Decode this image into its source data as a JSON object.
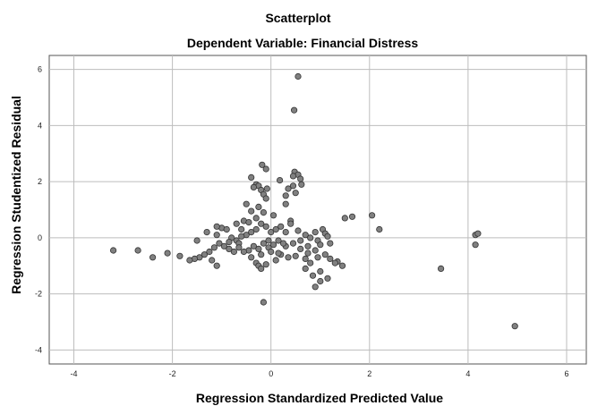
{
  "chart_data": {
    "type": "scatter",
    "title": "Scatterplot",
    "subtitle": "Dependent Variable: Financial Distress",
    "xlabel": "Regression Standardized Predicted Value",
    "ylabel": "Regression Studentized Residual",
    "xlim": [
      -4.5,
      6.4
    ],
    "ylim": [
      -4.5,
      6.5
    ],
    "x_ticks": [
      -4,
      -2,
      0,
      2,
      4,
      6
    ],
    "y_ticks": [
      -4,
      -2,
      0,
      2,
      4,
      6
    ],
    "grid": true,
    "marker_color": "#808080",
    "marker_edge_color": "#333333",
    "points": [
      [
        0.55,
        5.75
      ],
      [
        0.47,
        4.55
      ],
      [
        -0.18,
        2.6
      ],
      [
        -0.1,
        2.45
      ],
      [
        0.48,
        2.35
      ],
      [
        0.55,
        2.25
      ],
      [
        0.6,
        2.1
      ],
      [
        0.45,
        2.2
      ],
      [
        -0.4,
        2.15
      ],
      [
        0.18,
        2.05
      ],
      [
        0.62,
        1.9
      ],
      [
        -0.3,
        1.9
      ],
      [
        -0.25,
        1.85
      ],
      [
        -0.35,
        1.8
      ],
      [
        -0.08,
        1.75
      ],
      [
        -0.2,
        1.7
      ],
      [
        0.35,
        1.75
      ],
      [
        0.45,
        1.85
      ],
      [
        -0.15,
        1.55
      ],
      [
        0.3,
        1.5
      ],
      [
        0.5,
        1.6
      ],
      [
        -0.1,
        1.4
      ],
      [
        -0.5,
        1.2
      ],
      [
        -0.25,
        1.1
      ],
      [
        0.3,
        1.2
      ],
      [
        -0.4,
        0.95
      ],
      [
        -0.15,
        0.9
      ],
      [
        0.05,
        0.8
      ],
      [
        0.4,
        0.6
      ],
      [
        -0.3,
        0.7
      ],
      [
        -0.55,
        0.6
      ],
      [
        -0.7,
        0.5
      ],
      [
        -0.6,
        0.3
      ],
      [
        -0.45,
        0.55
      ],
      [
        -1.0,
        0.35
      ],
      [
        -1.1,
        0.4
      ],
      [
        -0.9,
        0.3
      ],
      [
        -1.3,
        0.2
      ],
      [
        -1.1,
        0.1
      ],
      [
        -0.8,
        0.0
      ],
      [
        -0.7,
        -0.1
      ],
      [
        -0.65,
        -0.2
      ],
      [
        -0.5,
        0.1
      ],
      [
        -0.4,
        0.2
      ],
      [
        -0.3,
        0.3
      ],
      [
        -0.2,
        0.5
      ],
      [
        -0.1,
        0.4
      ],
      [
        0.0,
        0.2
      ],
      [
        0.1,
        0.3
      ],
      [
        0.2,
        0.4
      ],
      [
        0.3,
        0.2
      ],
      [
        0.4,
        0.5
      ],
      [
        0.55,
        0.25
      ],
      [
        0.7,
        0.1
      ],
      [
        0.8,
        0.0
      ],
      [
        0.9,
        0.2
      ],
      [
        1.05,
        0.3
      ],
      [
        1.1,
        0.15
      ],
      [
        1.15,
        0.05
      ],
      [
        0.95,
        -0.1
      ],
      [
        0.75,
        -0.3
      ],
      [
        0.6,
        -0.4
      ],
      [
        0.45,
        -0.2
      ],
      [
        0.3,
        -0.3
      ],
      [
        0.15,
        -0.1
      ],
      [
        0.05,
        -0.25
      ],
      [
        -0.05,
        -0.35
      ],
      [
        -0.15,
        -0.2
      ],
      [
        -0.25,
        -0.4
      ],
      [
        -0.35,
        -0.3
      ],
      [
        -0.45,
        -0.45
      ],
      [
        -0.55,
        -0.5
      ],
      [
        -0.65,
        -0.35
      ],
      [
        -0.75,
        -0.5
      ],
      [
        -0.85,
        -0.4
      ],
      [
        -0.95,
        -0.3
      ],
      [
        -1.05,
        -0.2
      ],
      [
        -1.15,
        -0.35
      ],
      [
        -1.25,
        -0.5
      ],
      [
        -1.35,
        -0.6
      ],
      [
        -1.45,
        -0.7
      ],
      [
        -1.55,
        -0.75
      ],
      [
        -1.65,
        -0.8
      ],
      [
        -1.1,
        -1.0
      ],
      [
        -1.2,
        -0.8
      ],
      [
        -0.3,
        -0.9
      ],
      [
        -0.25,
        -1.0
      ],
      [
        -0.2,
        -1.1
      ],
      [
        -0.1,
        -0.95
      ],
      [
        0.1,
        -0.8
      ],
      [
        0.2,
        -0.6
      ],
      [
        0.35,
        -0.7
      ],
      [
        0.5,
        -0.65
      ],
      [
        0.7,
        -0.75
      ],
      [
        0.8,
        -0.9
      ],
      [
        0.95,
        -0.7
      ],
      [
        1.1,
        -0.6
      ],
      [
        1.2,
        -0.75
      ],
      [
        0.85,
        -1.35
      ],
      [
        1.0,
        -1.55
      ],
      [
        0.9,
        -1.75
      ],
      [
        1.15,
        -1.45
      ],
      [
        1.0,
        -1.2
      ],
      [
        0.7,
        -1.1
      ],
      [
        1.35,
        -0.85
      ],
      [
        1.45,
        -1.0
      ],
      [
        1.3,
        -0.9
      ],
      [
        0.9,
        -0.45
      ],
      [
        0.75,
        -0.55
      ],
      [
        1.0,
        -0.25
      ],
      [
        1.2,
        -0.2
      ],
      [
        0.6,
        -0.1
      ],
      [
        0.25,
        -0.2
      ],
      [
        -0.05,
        -0.1
      ],
      [
        -0.6,
        0.05
      ],
      [
        -0.85,
        -0.15
      ],
      [
        -0.2,
        -0.6
      ],
      [
        -0.4,
        -0.7
      ],
      [
        0.0,
        -0.5
      ],
      [
        0.15,
        -0.55
      ],
      [
        1.5,
        0.7
      ],
      [
        1.65,
        0.75
      ],
      [
        2.05,
        0.8
      ],
      [
        2.2,
        0.3
      ],
      [
        -3.2,
        -0.45
      ],
      [
        -2.7,
        -0.45
      ],
      [
        -2.4,
        -0.7
      ],
      [
        -2.1,
        -0.55
      ],
      [
        -1.85,
        -0.65
      ],
      [
        -1.5,
        -0.1
      ],
      [
        -0.15,
        -2.3
      ],
      [
        3.45,
        -1.1
      ],
      [
        4.15,
        0.1
      ],
      [
        4.2,
        0.15
      ],
      [
        4.15,
        -0.25
      ],
      [
        4.95,
        -3.15
      ]
    ]
  }
}
